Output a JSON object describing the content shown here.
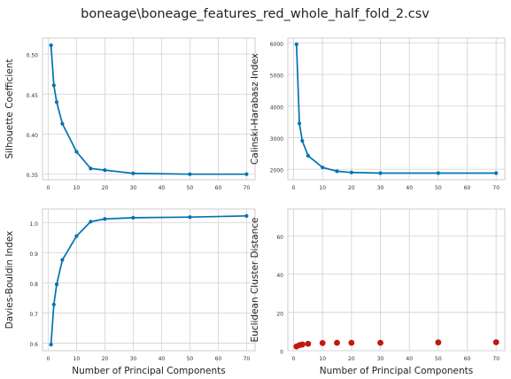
{
  "figure": {
    "title": "boneage\\boneage_features_red_whole_half_fold_2.csv",
    "colors": {
      "line": "#0072b2",
      "scatter": "#c0190e",
      "grid": "#d6d6d6",
      "frame": "#cccccc"
    }
  },
  "chart_data": [
    {
      "id": "silhouette",
      "type": "line",
      "xlabel": "",
      "ylabel": "Silhouette Coefficient",
      "x": [
        1,
        2,
        3,
        5,
        10,
        15,
        20,
        30,
        50,
        70
      ],
      "y": [
        0.511,
        0.461,
        0.44,
        0.413,
        0.378,
        0.357,
        0.355,
        0.351,
        0.35,
        0.35
      ],
      "xlim": [
        -2,
        73
      ],
      "ylim": [
        0.343,
        0.52
      ],
      "xticks": [
        0,
        10,
        20,
        30,
        40,
        50,
        60,
        70
      ],
      "yticks": [
        0.35,
        0.4,
        0.45,
        0.5
      ],
      "ytick_labels": [
        "0.35",
        "0.40",
        "0.45",
        "0.50"
      ],
      "grid": true
    },
    {
      "id": "calinski",
      "type": "line",
      "xlabel": "",
      "ylabel": "Calinski-Harabasz Index",
      "x": [
        1,
        2,
        3,
        5,
        10,
        15,
        20,
        30,
        50,
        70
      ],
      "y": [
        5950,
        3450,
        2900,
        2430,
        2060,
        1940,
        1900,
        1880,
        1880,
        1880
      ],
      "xlim": [
        -2,
        73
      ],
      "ylim": [
        1670,
        6150
      ],
      "xticks": [
        0,
        10,
        20,
        30,
        40,
        50,
        60,
        70
      ],
      "yticks": [
        2000,
        3000,
        4000,
        5000,
        6000
      ],
      "ytick_labels": [
        "2000",
        "3000",
        "4000",
        "5000",
        "6000"
      ],
      "grid": true
    },
    {
      "id": "davies",
      "type": "line",
      "xlabel": "Number of Principal Components",
      "ylabel": "Davies-Bouldin Index",
      "x": [
        1,
        2,
        3,
        5,
        10,
        15,
        20,
        30,
        50,
        70
      ],
      "y": [
        0.595,
        0.728,
        0.795,
        0.876,
        0.955,
        1.003,
        1.012,
        1.016,
        1.018,
        1.022
      ],
      "xlim": [
        -2,
        73
      ],
      "ylim": [
        0.575,
        1.045
      ],
      "xticks": [
        0,
        10,
        20,
        30,
        40,
        50,
        60,
        70
      ],
      "yticks": [
        0.6,
        0.7,
        0.8,
        0.9,
        1.0
      ],
      "ytick_labels": [
        "0.6",
        "0.7",
        "0.8",
        "0.9",
        "1.0"
      ],
      "grid": true
    },
    {
      "id": "euclidean",
      "type": "scatter",
      "xlabel": "Number of Principal Components",
      "ylabel": "Euclidean Cluster Distance",
      "x": [
        1,
        2,
        3,
        5,
        10,
        15,
        20,
        30,
        50,
        70
      ],
      "y": [
        2.2,
        2.9,
        3.2,
        3.6,
        4.0,
        4.1,
        4.1,
        4.1,
        4.3,
        4.4
      ],
      "xlim": [
        -2,
        73
      ],
      "ylim": [
        0,
        74
      ],
      "xticks": [
        0,
        10,
        20,
        30,
        40,
        50,
        60,
        70
      ],
      "yticks": [
        0,
        20,
        40,
        60
      ],
      "ytick_labels": [
        "0",
        "20",
        "40",
        "60"
      ],
      "grid": true
    }
  ]
}
